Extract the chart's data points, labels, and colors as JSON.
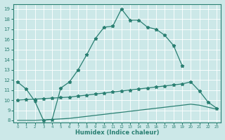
{
  "line1_x": [
    0,
    1,
    2,
    3,
    4,
    5,
    6,
    7,
    8,
    9,
    10,
    11,
    12,
    13,
    14,
    15,
    16,
    17,
    18,
    19
  ],
  "line1_y": [
    11.8,
    11.1,
    9.9,
    8.0,
    8.1,
    11.2,
    11.8,
    13.0,
    14.5,
    16.1,
    17.2,
    17.3,
    19.0,
    17.9,
    17.9,
    17.2,
    17.0,
    16.4,
    15.4,
    13.4
  ],
  "line2_x": [
    0,
    1,
    2,
    3,
    4,
    5,
    6,
    7,
    8,
    9,
    10,
    11,
    12,
    13,
    14,
    15,
    16,
    17,
    18,
    19,
    20,
    21,
    22,
    23
  ],
  "line2_y": [
    10.0,
    10.05,
    10.1,
    10.15,
    10.2,
    10.25,
    10.3,
    10.4,
    10.5,
    10.6,
    10.7,
    10.8,
    10.9,
    11.0,
    11.1,
    11.2,
    11.3,
    11.4,
    11.5,
    11.6,
    11.8,
    10.9,
    9.8,
    9.2
  ],
  "line3_x": [
    0,
    1,
    2,
    3,
    4,
    5,
    6,
    7,
    8,
    9,
    10,
    11,
    12,
    13,
    14,
    15,
    16,
    17,
    18,
    19,
    20,
    21,
    22,
    23
  ],
  "line3_y": [
    8.0,
    8.0,
    8.0,
    8.05,
    8.1,
    8.15,
    8.2,
    8.3,
    8.4,
    8.5,
    8.6,
    8.7,
    8.8,
    8.9,
    9.0,
    9.1,
    9.2,
    9.3,
    9.4,
    9.5,
    9.6,
    9.5,
    9.3,
    9.1
  ],
  "color": "#2a7f72",
  "bg_color": "#cce8e8",
  "grid_color": "#b0d8d8",
  "xlabel": "Humidex (Indice chaleur)",
  "ylim": [
    7.8,
    19.5
  ],
  "xlim": [
    -0.5,
    23.5
  ],
  "yticks": [
    8,
    9,
    10,
    11,
    12,
    13,
    14,
    15,
    16,
    17,
    18,
    19
  ],
  "xticks": [
    0,
    1,
    2,
    3,
    4,
    5,
    6,
    7,
    8,
    9,
    10,
    11,
    12,
    13,
    14,
    15,
    16,
    17,
    18,
    19,
    20,
    21,
    22,
    23
  ]
}
